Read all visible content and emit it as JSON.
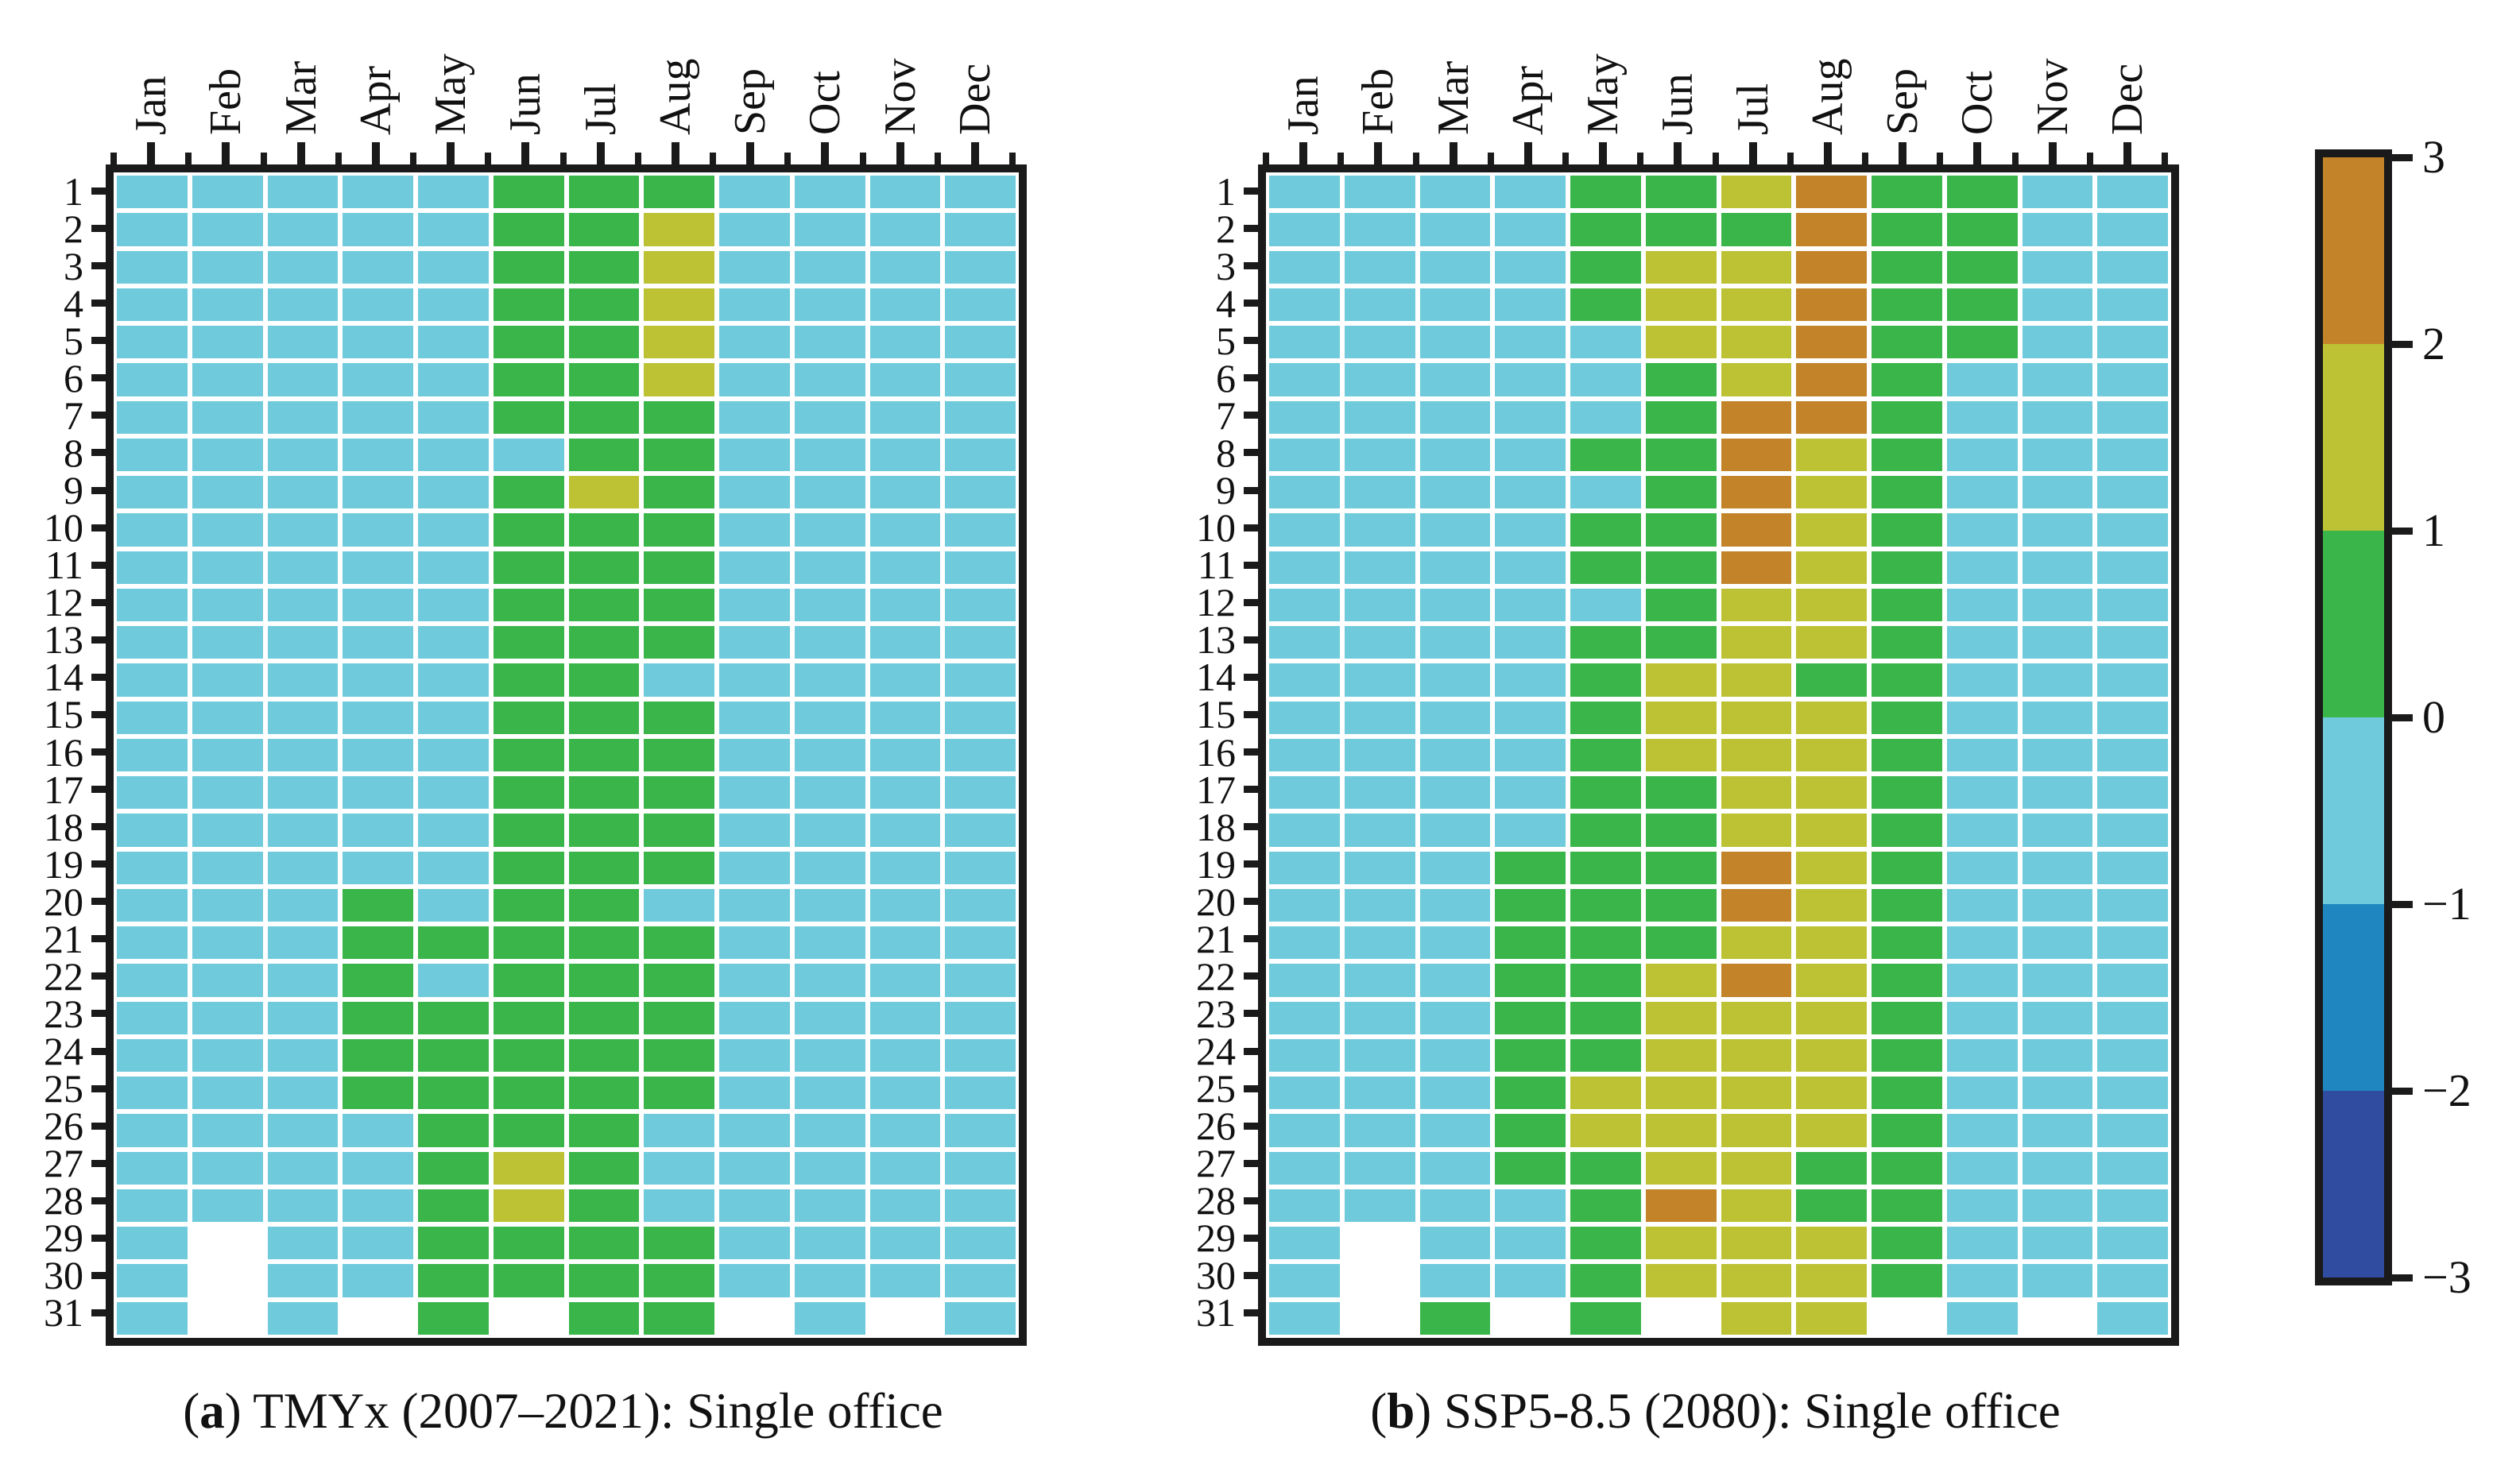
{
  "chart_data": {
    "type": "heatmap",
    "layout": {
      "grid_gaps": true,
      "colorbar_position": "right",
      "x_axis_position": "top",
      "x_tick_rotation": 90
    },
    "value_color_map": {
      "0": "#6FCBDC",
      "1": "#3AB54A",
      "2": "#BCC233",
      "3": "#C28329",
      "missing": "#FFFFFF"
    },
    "value_meaning": {
      "0": "band -1..0",
      "1": "band 0..1",
      "2": "band 1..2",
      "3": "band 2..3",
      "null": "no data (day does not exist)"
    },
    "colorbar": {
      "tick_labels": [
        "3",
        "2",
        "1",
        "0",
        "−1",
        "−2",
        "−3"
      ],
      "range": [
        -3,
        3
      ],
      "band_colors_top_to_bottom": [
        "#C28329",
        "#BCC233",
        "#3AB54A",
        "#6FCBDC",
        "#1F86BF",
        "#2F4CA0"
      ]
    },
    "panels": [
      {
        "caption": {
          "open": "(",
          "letter": "a",
          "rest": ") TMYx (2007–2021): Single office"
        },
        "x_categories": [
          "Jan",
          "Feb",
          "Mar",
          "Apr",
          "May",
          "Jun",
          "Jul",
          "Aug",
          "Sep",
          "Oct",
          "Nov",
          "Dec"
        ],
        "y_categories": [
          "1",
          "2",
          "3",
          "4",
          "5",
          "6",
          "7",
          "8",
          "9",
          "10",
          "11",
          "12",
          "13",
          "14",
          "15",
          "16",
          "17",
          "18",
          "19",
          "20",
          "21",
          "22",
          "23",
          "24",
          "25",
          "26",
          "27",
          "28",
          "29",
          "30",
          "31"
        ],
        "values": [
          [
            0,
            0,
            0,
            0,
            0,
            1,
            1,
            1,
            0,
            0,
            0,
            0
          ],
          [
            0,
            0,
            0,
            0,
            0,
            1,
            1,
            2,
            0,
            0,
            0,
            0
          ],
          [
            0,
            0,
            0,
            0,
            0,
            1,
            1,
            2,
            0,
            0,
            0,
            0
          ],
          [
            0,
            0,
            0,
            0,
            0,
            1,
            1,
            2,
            0,
            0,
            0,
            0
          ],
          [
            0,
            0,
            0,
            0,
            0,
            1,
            1,
            2,
            0,
            0,
            0,
            0
          ],
          [
            0,
            0,
            0,
            0,
            0,
            1,
            1,
            2,
            0,
            0,
            0,
            0
          ],
          [
            0,
            0,
            0,
            0,
            0,
            1,
            1,
            1,
            0,
            0,
            0,
            0
          ],
          [
            0,
            0,
            0,
            0,
            0,
            0,
            1,
            1,
            0,
            0,
            0,
            0
          ],
          [
            0,
            0,
            0,
            0,
            0,
            1,
            2,
            1,
            0,
            0,
            0,
            0
          ],
          [
            0,
            0,
            0,
            0,
            0,
            1,
            1,
            1,
            0,
            0,
            0,
            0
          ],
          [
            0,
            0,
            0,
            0,
            0,
            1,
            1,
            1,
            0,
            0,
            0,
            0
          ],
          [
            0,
            0,
            0,
            0,
            0,
            1,
            1,
            1,
            0,
            0,
            0,
            0
          ],
          [
            0,
            0,
            0,
            0,
            0,
            1,
            1,
            1,
            0,
            0,
            0,
            0
          ],
          [
            0,
            0,
            0,
            0,
            0,
            1,
            1,
            0,
            0,
            0,
            0,
            0
          ],
          [
            0,
            0,
            0,
            0,
            0,
            1,
            1,
            1,
            0,
            0,
            0,
            0
          ],
          [
            0,
            0,
            0,
            0,
            0,
            1,
            1,
            1,
            0,
            0,
            0,
            0
          ],
          [
            0,
            0,
            0,
            0,
            0,
            1,
            1,
            1,
            0,
            0,
            0,
            0
          ],
          [
            0,
            0,
            0,
            0,
            0,
            1,
            1,
            1,
            0,
            0,
            0,
            0
          ],
          [
            0,
            0,
            0,
            0,
            0,
            1,
            1,
            1,
            0,
            0,
            0,
            0
          ],
          [
            0,
            0,
            0,
            1,
            0,
            1,
            1,
            0,
            0,
            0,
            0,
            0
          ],
          [
            0,
            0,
            0,
            1,
            1,
            1,
            1,
            1,
            0,
            0,
            0,
            0
          ],
          [
            0,
            0,
            0,
            1,
            0,
            1,
            1,
            1,
            0,
            0,
            0,
            0
          ],
          [
            0,
            0,
            0,
            1,
            1,
            1,
            1,
            1,
            0,
            0,
            0,
            0
          ],
          [
            0,
            0,
            0,
            1,
            1,
            1,
            1,
            1,
            0,
            0,
            0,
            0
          ],
          [
            0,
            0,
            0,
            1,
            1,
            1,
            1,
            1,
            0,
            0,
            0,
            0
          ],
          [
            0,
            0,
            0,
            0,
            1,
            1,
            1,
            0,
            0,
            0,
            0,
            0
          ],
          [
            0,
            0,
            0,
            0,
            1,
            2,
            1,
            0,
            0,
            0,
            0,
            0
          ],
          [
            0,
            0,
            0,
            0,
            1,
            2,
            1,
            0,
            0,
            0,
            0,
            0
          ],
          [
            0,
            null,
            0,
            0,
            1,
            1,
            1,
            1,
            0,
            0,
            0,
            0
          ],
          [
            0,
            null,
            0,
            0,
            1,
            1,
            1,
            1,
            0,
            0,
            0,
            0
          ],
          [
            0,
            null,
            0,
            null,
            1,
            null,
            1,
            1,
            null,
            0,
            null,
            0
          ]
        ]
      },
      {
        "caption": {
          "open": "(",
          "letter": "b",
          "rest": ") SSP5-8.5 (2080): Single office"
        },
        "x_categories": [
          "Jan",
          "Feb",
          "Mar",
          "Apr",
          "May",
          "Jun",
          "Jul",
          "Aug",
          "Sep",
          "Oct",
          "Nov",
          "Dec"
        ],
        "y_categories": [
          "1",
          "2",
          "3",
          "4",
          "5",
          "6",
          "7",
          "8",
          "9",
          "10",
          "11",
          "12",
          "13",
          "14",
          "15",
          "16",
          "17",
          "18",
          "19",
          "20",
          "21",
          "22",
          "23",
          "24",
          "25",
          "26",
          "27",
          "28",
          "29",
          "30",
          "31"
        ],
        "values": [
          [
            0,
            0,
            0,
            0,
            1,
            1,
            2,
            3,
            1,
            1,
            0,
            0
          ],
          [
            0,
            0,
            0,
            0,
            1,
            1,
            1,
            3,
            1,
            1,
            0,
            0
          ],
          [
            0,
            0,
            0,
            0,
            1,
            2,
            2,
            3,
            1,
            1,
            0,
            0
          ],
          [
            0,
            0,
            0,
            0,
            1,
            2,
            2,
            3,
            1,
            1,
            0,
            0
          ],
          [
            0,
            0,
            0,
            0,
            0,
            2,
            2,
            3,
            1,
            1,
            0,
            0
          ],
          [
            0,
            0,
            0,
            0,
            0,
            1,
            2,
            3,
            1,
            0,
            0,
            0
          ],
          [
            0,
            0,
            0,
            0,
            0,
            1,
            3,
            3,
            1,
            0,
            0,
            0
          ],
          [
            0,
            0,
            0,
            0,
            1,
            1,
            3,
            2,
            1,
            0,
            0,
            0
          ],
          [
            0,
            0,
            0,
            0,
            0,
            1,
            3,
            2,
            1,
            0,
            0,
            0
          ],
          [
            0,
            0,
            0,
            0,
            1,
            1,
            3,
            2,
            1,
            0,
            0,
            0
          ],
          [
            0,
            0,
            0,
            0,
            1,
            1,
            3,
            2,
            1,
            0,
            0,
            0
          ],
          [
            0,
            0,
            0,
            0,
            0,
            1,
            2,
            2,
            1,
            0,
            0,
            0
          ],
          [
            0,
            0,
            0,
            0,
            1,
            1,
            2,
            2,
            1,
            0,
            0,
            0
          ],
          [
            0,
            0,
            0,
            0,
            1,
            2,
            2,
            1,
            1,
            0,
            0,
            0
          ],
          [
            0,
            0,
            0,
            0,
            1,
            2,
            2,
            2,
            1,
            0,
            0,
            0
          ],
          [
            0,
            0,
            0,
            0,
            1,
            2,
            2,
            2,
            1,
            0,
            0,
            0
          ],
          [
            0,
            0,
            0,
            0,
            1,
            1,
            2,
            2,
            1,
            0,
            0,
            0
          ],
          [
            0,
            0,
            0,
            0,
            1,
            1,
            2,
            2,
            1,
            0,
            0,
            0
          ],
          [
            0,
            0,
            0,
            1,
            1,
            1,
            3,
            2,
            1,
            0,
            0,
            0
          ],
          [
            0,
            0,
            0,
            1,
            1,
            1,
            3,
            2,
            1,
            0,
            0,
            0
          ],
          [
            0,
            0,
            0,
            1,
            1,
            1,
            2,
            2,
            1,
            0,
            0,
            0
          ],
          [
            0,
            0,
            0,
            1,
            1,
            2,
            3,
            2,
            1,
            0,
            0,
            0
          ],
          [
            0,
            0,
            0,
            1,
            1,
            2,
            2,
            2,
            1,
            0,
            0,
            0
          ],
          [
            0,
            0,
            0,
            1,
            1,
            2,
            2,
            2,
            1,
            0,
            0,
            0
          ],
          [
            0,
            0,
            0,
            1,
            2,
            2,
            2,
            2,
            1,
            0,
            0,
            0
          ],
          [
            0,
            0,
            0,
            1,
            2,
            2,
            2,
            2,
            1,
            0,
            0,
            0
          ],
          [
            0,
            0,
            0,
            1,
            1,
            2,
            2,
            1,
            1,
            0,
            0,
            0
          ],
          [
            0,
            0,
            0,
            0,
            1,
            3,
            2,
            1,
            1,
            0,
            0,
            0
          ],
          [
            0,
            null,
            0,
            0,
            1,
            2,
            2,
            2,
            1,
            0,
            0,
            0
          ],
          [
            0,
            null,
            0,
            0,
            1,
            2,
            2,
            2,
            1,
            0,
            0,
            0
          ],
          [
            0,
            null,
            1,
            null,
            1,
            null,
            2,
            2,
            null,
            0,
            null,
            0
          ]
        ]
      }
    ]
  }
}
